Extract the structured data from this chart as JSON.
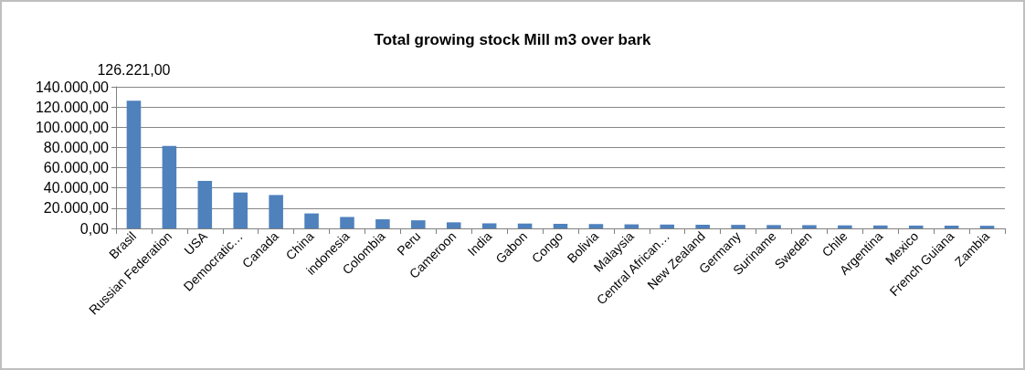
{
  "chart_data": {
    "type": "bar",
    "title": "Total growing stock Mill m3 over bark",
    "categories": [
      "Brasil",
      "Russian Federation",
      "USA",
      "Democratic…",
      "Canada",
      "China",
      "indonesia",
      "Colombia",
      "Peru",
      "Cameroon",
      "India",
      "Gabon",
      "Congo",
      "Bolivia",
      "Malaysia",
      "Central African…",
      "New Zealand",
      "Germany",
      "Suriname",
      "Sweden",
      "Chile",
      "Argentina",
      "Mexico",
      "French Guiana",
      "Zambia"
    ],
    "values": [
      126221,
      81500,
      47000,
      35500,
      33000,
      14800,
      11300,
      9000,
      8000,
      6000,
      5000,
      4800,
      4500,
      4300,
      4000,
      3800,
      3600,
      3500,
      3300,
      3200,
      3000,
      2900,
      2800,
      2700,
      2600
    ],
    "value_labels": [
      "126.221,00",
      null,
      null,
      null,
      null,
      null,
      null,
      null,
      null,
      null,
      null,
      null,
      null,
      null,
      null,
      null,
      null,
      null,
      null,
      null,
      null,
      null,
      null,
      null,
      null
    ],
    "color": "#4f81bd",
    "ylim": [
      0,
      140000
    ],
    "yticks": [
      {
        "value": 0,
        "label": "0,00"
      },
      {
        "value": 20000,
        "label": "20.000,00"
      },
      {
        "value": 40000,
        "label": "40.000,00"
      },
      {
        "value": 60000,
        "label": "60.000,00"
      },
      {
        "value": 80000,
        "label": "80.000,00"
      },
      {
        "value": 100000,
        "label": "100.000,00"
      },
      {
        "value": 120000,
        "label": "120.000,00"
      },
      {
        "value": 140000,
        "label": "140.000,00"
      }
    ],
    "grid": "y"
  }
}
